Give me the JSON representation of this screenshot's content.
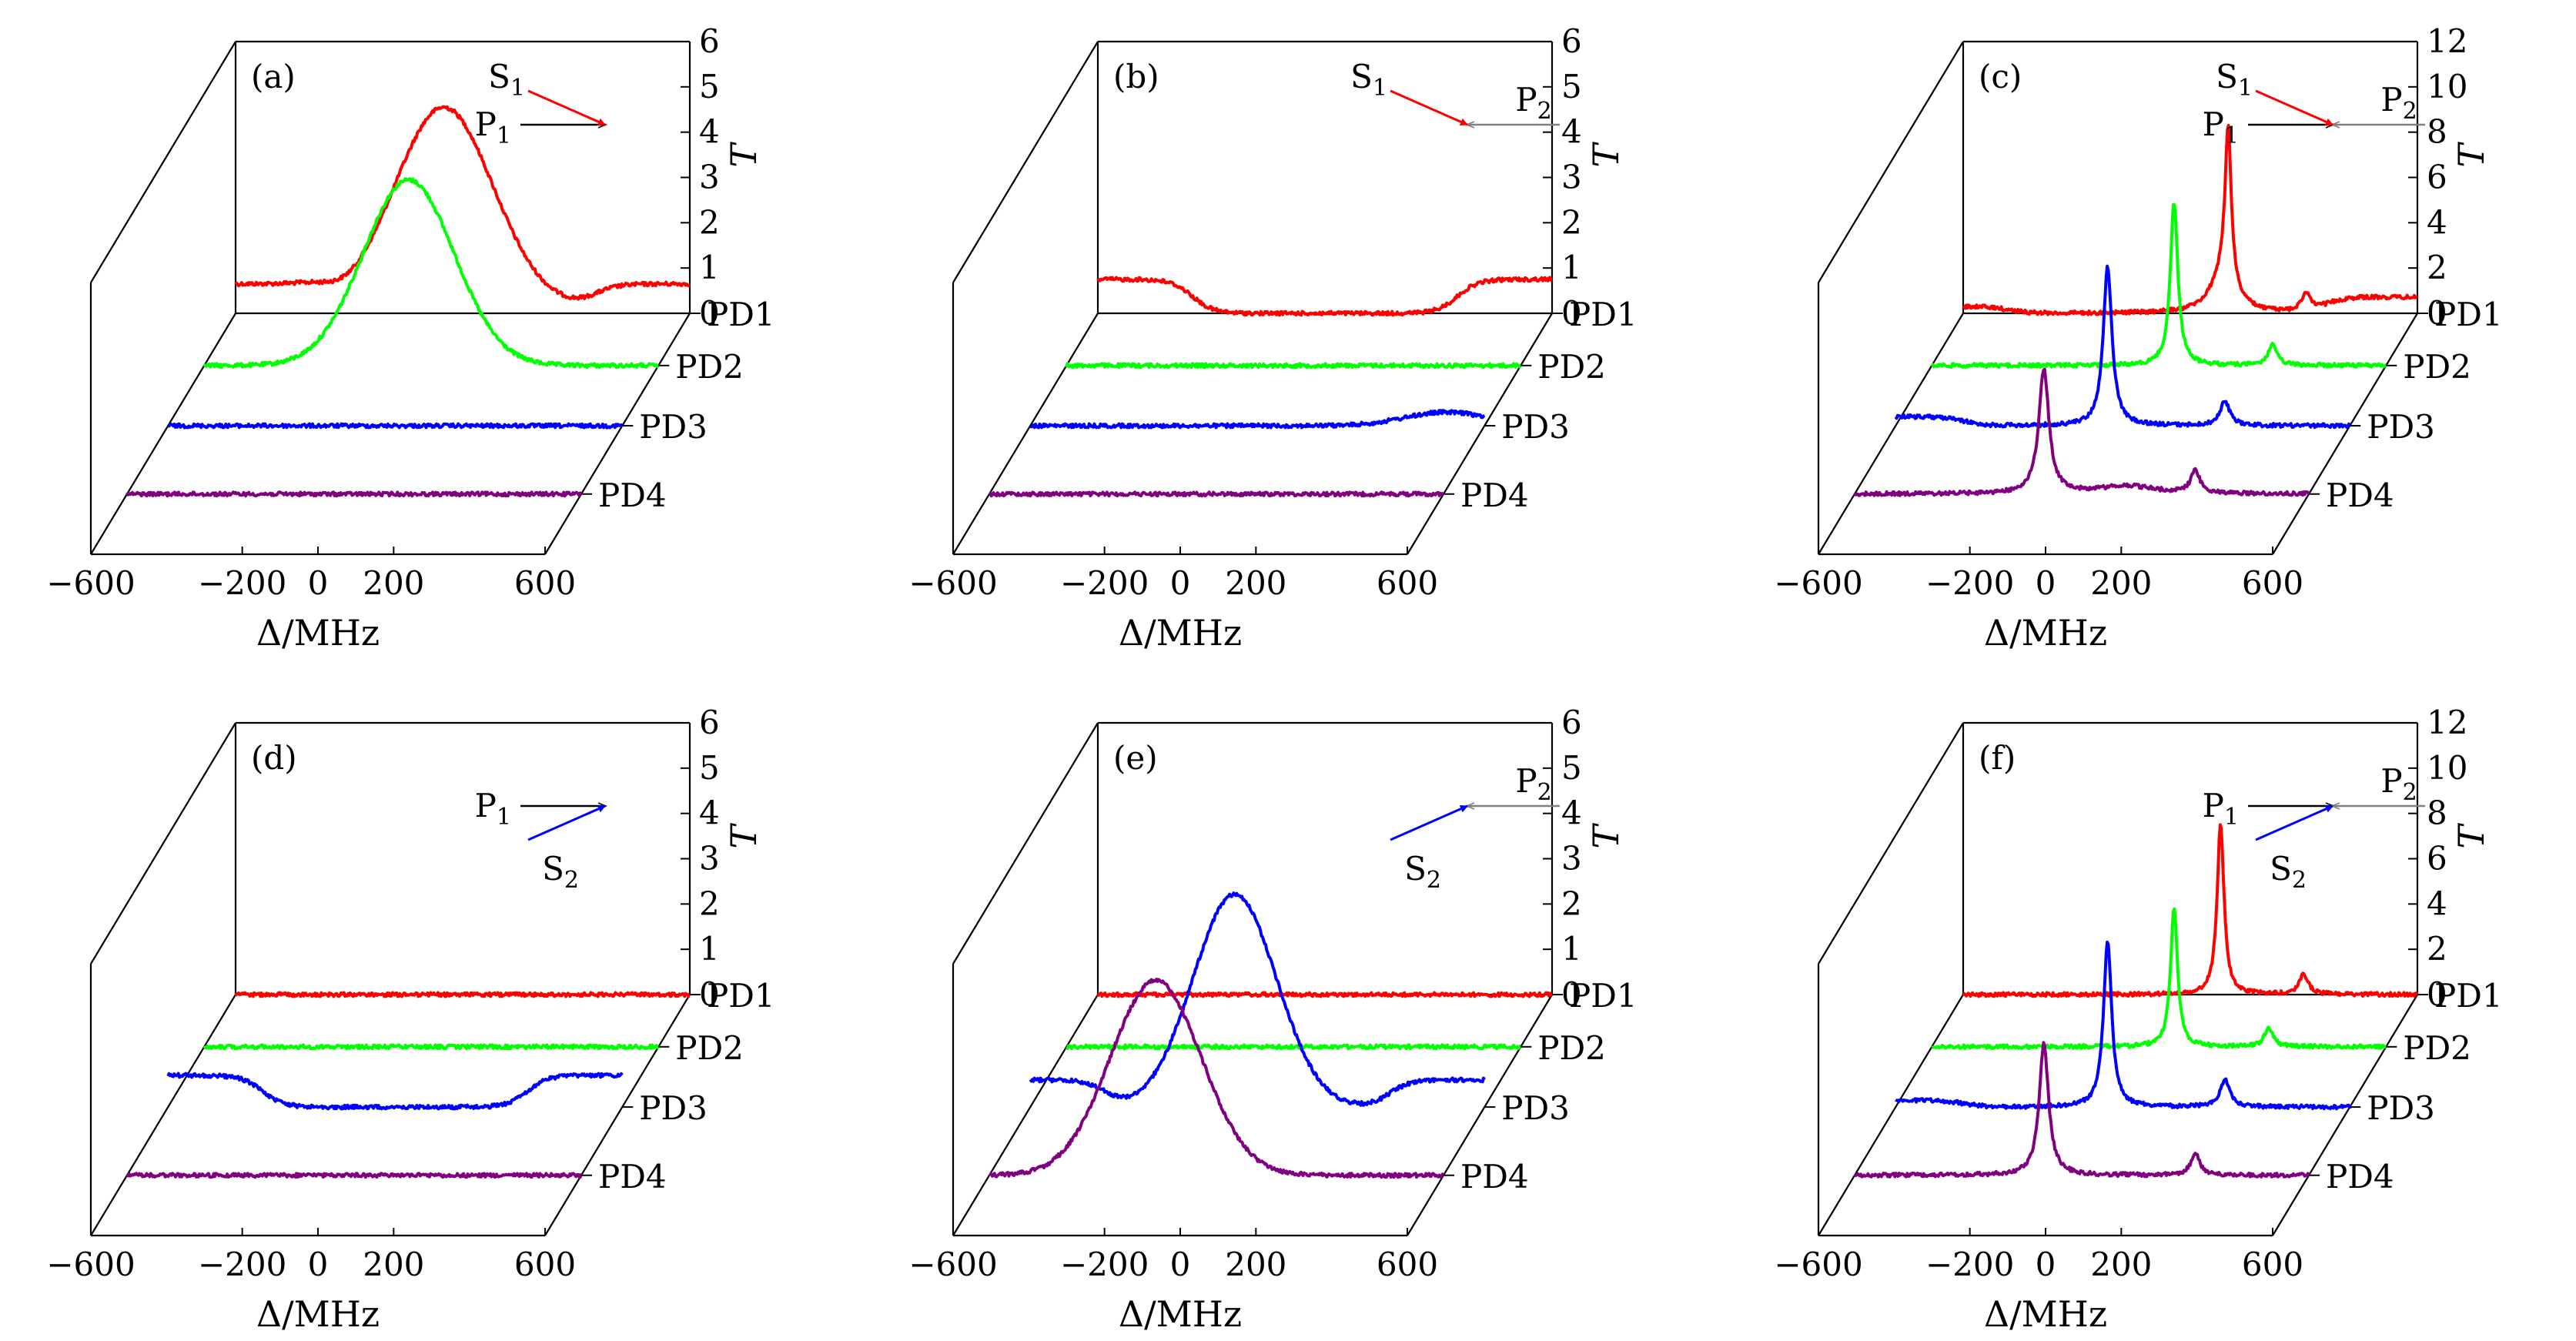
{
  "figure": {
    "colors": {
      "PD1": "#ff0000",
      "PD2": "#00ff00",
      "PD3": "#0000ff",
      "PD4": "#800080",
      "axes": "#000000",
      "gray_arrow": "#808080"
    },
    "trace_labels": [
      "PD1",
      "PD2",
      "PD3",
      "PD4"
    ]
  },
  "chart_data": [
    {
      "type": "line",
      "panel_label": "(a)",
      "x_label": "Δ/MHz",
      "x_ticks": [
        -600,
        -200,
        0,
        200,
        600
      ],
      "x_range": [
        -600,
        600
      ],
      "y_label": "T",
      "y_ticks": [
        0,
        1,
        2,
        3,
        4,
        5,
        6
      ],
      "y_range": [
        0,
        6
      ],
      "beam_labels": {
        "P1": "P1",
        "P2": "",
        "S": "S1"
      },
      "series": [
        {
          "name": "PD1",
          "color": "red",
          "baseline": 0.15,
          "lorentz": [],
          "gauss": [
            {
              "center": -50,
              "width": 130,
              "amp": 4.4
            }
          ],
          "wings": {
            "left": 0.5,
            "right": 0.5,
            "left_end": -350,
            "right_start": 350,
            "width": 120
          }
        },
        {
          "name": "PD2",
          "color": "green",
          "baseline": 0.0,
          "lorentz": [],
          "gauss": [
            {
              "center": -60,
              "width": 120,
              "amp": 4.1
            }
          ],
          "wings": null
        },
        {
          "name": "PD3",
          "color": "blue",
          "baseline": 0.0,
          "lorentz": [],
          "gauss": [],
          "wings": null
        },
        {
          "name": "PD4",
          "color": "purple",
          "baseline": 0.0,
          "lorentz": [],
          "gauss": [],
          "wings": null
        }
      ]
    },
    {
      "type": "line",
      "panel_label": "(b)",
      "x_label": "Δ/MHz",
      "x_ticks": [
        -600,
        -200,
        0,
        200,
        600
      ],
      "x_range": [
        -600,
        600
      ],
      "y_label": "T",
      "y_ticks": [
        0,
        1,
        2,
        3,
        4,
        5,
        6
      ],
      "y_range": [
        0,
        6
      ],
      "beam_labels": {
        "P1": "",
        "P2": "P2",
        "S": "S1"
      },
      "series": [
        {
          "name": "PD1",
          "color": "red",
          "baseline": 0.0,
          "lorentz": [],
          "gauss": [],
          "wings": {
            "left": 0.75,
            "right": 0.75,
            "left_end": -350,
            "right_start": 350,
            "width": 110
          }
        },
        {
          "name": "PD2",
          "color": "green",
          "baseline": 0.0,
          "lorentz": [],
          "gauss": [],
          "wings": null
        },
        {
          "name": "PD3",
          "color": "blue",
          "baseline": 0.0,
          "lorentz": [],
          "gauss": [
            {
              "center": 500,
              "width": 110,
              "amp": 0.3
            }
          ],
          "wings": null
        },
        {
          "name": "PD4",
          "color": "purple",
          "baseline": 0.0,
          "lorentz": [],
          "gauss": [],
          "wings": null
        }
      ]
    },
    {
      "type": "line",
      "panel_label": "(c)",
      "x_label": "Δ/MHz",
      "x_ticks": [
        -600,
        -200,
        0,
        200,
        600
      ],
      "x_range": [
        -600,
        600
      ],
      "y_label": "T",
      "y_ticks": [
        0,
        2,
        4,
        6,
        8,
        10,
        12
      ],
      "y_range": [
        0,
        12
      ],
      "beam_labels": {
        "P1": "P1",
        "P2": "P2",
        "S": "S1"
      },
      "series": [
        {
          "name": "PD1",
          "color": "red",
          "baseline": 0.0,
          "lorentz": [
            {
              "center": 100,
              "width": 10,
              "amp": 7.0
            },
            {
              "center": 85,
              "width": 40,
              "amp": 1.5
            },
            {
              "center": 305,
              "width": 14,
              "amp": 0.8
            }
          ],
          "gauss": [],
          "wings": {
            "left": 0.3,
            "right": 0.7,
            "left_end": -480,
            "right_start": 360,
            "width": 110
          }
        },
        {
          "name": "PD2",
          "color": "green",
          "baseline": 0.0,
          "lorentz": [
            {
              "center": 40,
              "width": 12,
              "amp": 7.2
            },
            {
              "center": 300,
              "width": 14,
              "amp": 0.9
            }
          ],
          "gauss": [],
          "wings": null
        },
        {
          "name": "PD3",
          "color": "blue",
          "baseline": 0.0,
          "lorentz": [
            {
              "center": -40,
              "width": 14,
              "amp": 7.0
            },
            {
              "center": 270,
              "width": 15,
              "amp": 1.1
            }
          ],
          "gauss": [],
          "wings": {
            "left": 0.4,
            "right": 0.0,
            "left_end": -420,
            "right_start": 600,
            "width": 110
          }
        },
        {
          "name": "PD4",
          "color": "purple",
          "baseline": 0.0,
          "lorentz": [
            {
              "center": -100,
              "width": 16,
              "amp": 5.5
            },
            {
              "center": 300,
              "width": 14,
              "amp": 1.0
            },
            {
              "center": 120,
              "width": 90,
              "amp": 0.35
            }
          ],
          "gauss": [],
          "wings": null
        }
      ]
    },
    {
      "type": "line",
      "panel_label": "(d)",
      "x_label": "Δ/MHz",
      "x_ticks": [
        -600,
        -200,
        0,
        200,
        600
      ],
      "x_range": [
        -600,
        600
      ],
      "y_label": "T",
      "y_ticks": [
        0,
        1,
        2,
        3,
        4,
        5,
        6
      ],
      "y_range": [
        0,
        6
      ],
      "beam_labels": {
        "P1": "P1",
        "P2": "",
        "S": "S2"
      },
      "series": [
        {
          "name": "PD1",
          "color": "red",
          "baseline": 0.0,
          "lorentz": [],
          "gauss": [],
          "wings": null
        },
        {
          "name": "PD2",
          "color": "green",
          "baseline": 0.0,
          "lorentz": [],
          "gauss": [],
          "wings": null
        },
        {
          "name": "PD3",
          "color": "blue",
          "baseline": 0.0,
          "lorentz": [],
          "gauss": [],
          "wings": {
            "left": 0.7,
            "right": 0.7,
            "left_end": -350,
            "right_start": 350,
            "width": 110
          }
        },
        {
          "name": "PD4",
          "color": "purple",
          "baseline": 0.0,
          "lorentz": [],
          "gauss": [],
          "wings": null
        }
      ]
    },
    {
      "type": "line",
      "panel_label": "(e)",
      "x_label": "Δ/MHz",
      "x_ticks": [
        -600,
        -200,
        0,
        200,
        600
      ],
      "x_range": [
        -600,
        600
      ],
      "y_label": "T",
      "y_ticks": [
        0,
        1,
        2,
        3,
        4,
        5,
        6
      ],
      "y_range": [
        0,
        6
      ],
      "beam_labels": {
        "P1": "",
        "P2": "P2",
        "S": "S2"
      },
      "series": [
        {
          "name": "PD1",
          "color": "red",
          "baseline": 0.0,
          "lorentz": [],
          "gauss": [],
          "wings": null
        },
        {
          "name": "PD2",
          "color": "green",
          "baseline": 0.0,
          "lorentz": [],
          "gauss": [],
          "wings": null
        },
        {
          "name": "PD3",
          "color": "blue",
          "baseline": 0.0,
          "lorentz": [],
          "gauss": [
            {
              "center": -60,
              "width": 110,
              "amp": 4.7
            }
          ],
          "wings": {
            "left": 0.6,
            "right": 0.6,
            "left_end": -400,
            "right_start": 350,
            "width": 110
          }
        },
        {
          "name": "PD4",
          "color": "purple",
          "baseline": 0.0,
          "lorentz": [],
          "gauss": [
            {
              "center": -160,
              "width": 120,
              "amp": 4.3
            }
          ],
          "wings": null
        }
      ]
    },
    {
      "type": "line",
      "panel_label": "(f)",
      "x_label": "Δ/MHz",
      "x_ticks": [
        -600,
        -200,
        0,
        200,
        600
      ],
      "x_range": [
        -600,
        600
      ],
      "y_label": "T",
      "y_ticks": [
        0,
        2,
        4,
        6,
        8,
        10,
        12
      ],
      "y_range": [
        0,
        12
      ],
      "beam_labels": {
        "P1": "P1",
        "P2": "P2",
        "S": "S2"
      },
      "series": [
        {
          "name": "PD1",
          "color": "red",
          "baseline": 0.0,
          "lorentz": [
            {
              "center": 80,
              "width": 11,
              "amp": 7.5
            },
            {
              "center": 300,
              "width": 14,
              "amp": 0.9
            }
          ],
          "gauss": [],
          "wings": null
        },
        {
          "name": "PD2",
          "color": "green",
          "baseline": 0.0,
          "lorentz": [
            {
              "center": 40,
              "width": 11,
              "amp": 6.2
            },
            {
              "center": 290,
              "width": 14,
              "amp": 0.8
            }
          ],
          "gauss": [],
          "wings": null
        },
        {
          "name": "PD3",
          "color": "blue",
          "baseline": 0.0,
          "lorentz": [
            {
              "center": -40,
              "width": 13,
              "amp": 7.3
            },
            {
              "center": 270,
              "width": 15,
              "amp": 1.2
            }
          ],
          "gauss": [],
          "wings": {
            "left": 0.3,
            "right": 0.0,
            "left_end": -420,
            "right_start": 600,
            "width": 110
          }
        },
        {
          "name": "PD4",
          "color": "purple",
          "baseline": 0.0,
          "lorentz": [
            {
              "center": -100,
              "width": 15,
              "amp": 5.8
            },
            {
              "center": 300,
              "width": 14,
              "amp": 1.0
            }
          ],
          "gauss": [],
          "wings": null
        }
      ]
    }
  ]
}
